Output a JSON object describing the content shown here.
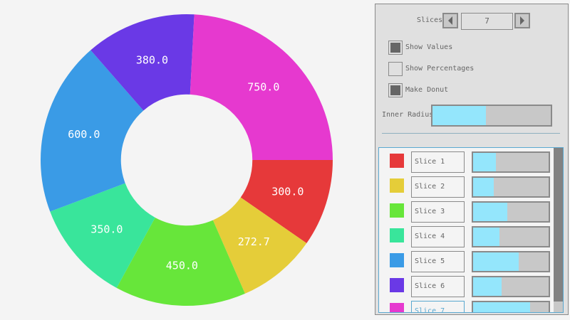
{
  "chart_data": {
    "type": "pie",
    "donut": true,
    "inner_radius_fraction": 0.45,
    "categories": [
      "Slice 1",
      "Slice 2",
      "Slice 3",
      "Slice 4",
      "Slice 5",
      "Slice 6",
      "Slice 7"
    ],
    "values": [
      300.0,
      272.7,
      450.0,
      350.0,
      600.0,
      380.0,
      750.0
    ],
    "value_labels": [
      "300.0",
      "272.7",
      "450.0",
      "350.0",
      "600.0",
      "380.0",
      "750.0"
    ],
    "colors": [
      "#e6393a",
      "#e5cd39",
      "#67e63a",
      "#39e59b",
      "#3a9be6",
      "#6a39e6",
      "#e639cf"
    ]
  },
  "controls": {
    "slices_label": "Slices",
    "slices_value": "7",
    "show_values": {
      "label": "Show Values",
      "checked": true
    },
    "show_percentages": {
      "label": "Show Percentages",
      "checked": false
    },
    "make_donut": {
      "label": "Make Donut",
      "checked": true
    },
    "inner_radius": {
      "label": "Inner Radius",
      "value": 0.45
    }
  },
  "slice_list": {
    "slider_max": 1000,
    "items": [
      {
        "name": "Slice 1",
        "value": 300.0,
        "color": "#e6393a"
      },
      {
        "name": "Slice 2",
        "value": 272.7,
        "color": "#e5cd39"
      },
      {
        "name": "Slice 3",
        "value": 450.0,
        "color": "#67e63a"
      },
      {
        "name": "Slice 4",
        "value": 350.0,
        "color": "#39e59b"
      },
      {
        "name": "Slice 5",
        "value": 600.0,
        "color": "#3a9be6"
      },
      {
        "name": "Slice 6",
        "value": 380.0,
        "color": "#6a39e6"
      },
      {
        "name": "Slice 7",
        "value": 750.0,
        "color": "#e639cf"
      }
    ]
  }
}
